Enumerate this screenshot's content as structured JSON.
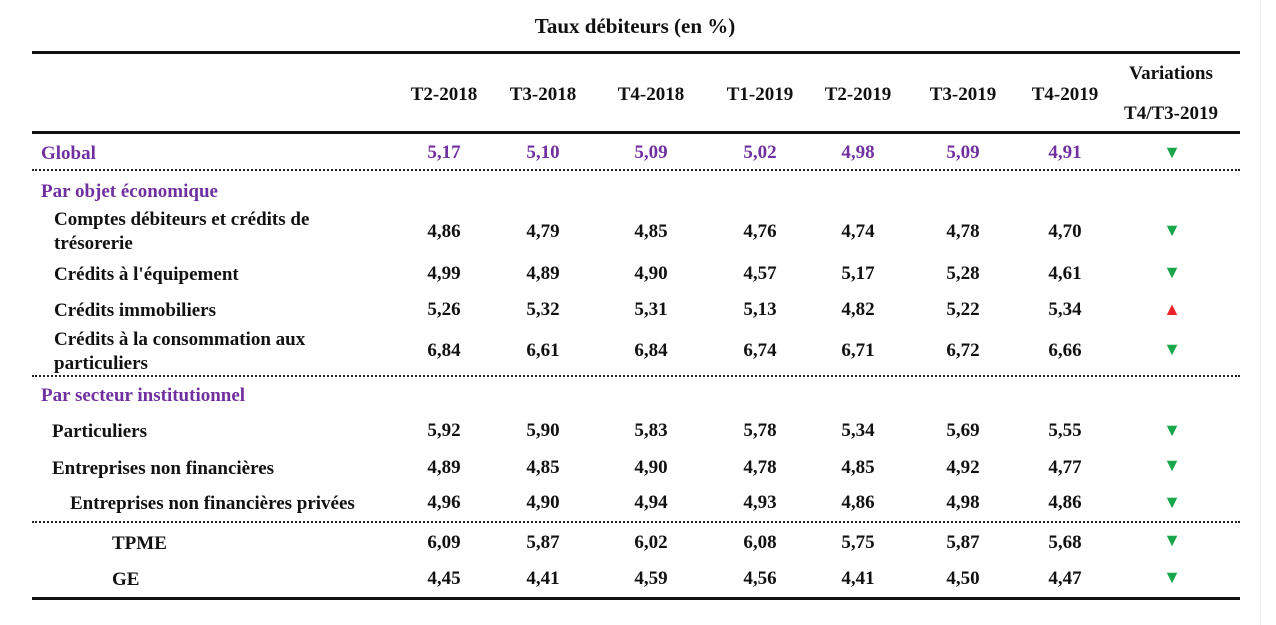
{
  "title": "Taux débiteurs (en %)",
  "columns": [
    "T2-2018",
    "T3-2018",
    "T4-2018",
    "T1-2019",
    "T2-2019",
    "T3-2019",
    "T4-2019"
  ],
  "variation_header": [
    "Variations",
    "T4/T3-2019"
  ],
  "sections": {
    "objet": "Par objet économique",
    "secteur": "Par secteur institutionnel"
  },
  "rows": [
    {
      "label": [
        "Global"
      ],
      "values": [
        "5,17",
        "5,10",
        "5,09",
        "5,02",
        "4,98",
        "5,09",
        "4,91"
      ],
      "variation": "down",
      "arrow": "▼"
    },
    {
      "label": [
        "Comptes débiteurs et crédits de",
        "trésorerie"
      ],
      "values": [
        "4,86",
        "4,79",
        "4,85",
        "4,76",
        "4,74",
        "4,78",
        "4,70"
      ],
      "variation": "down",
      "arrow": "▼"
    },
    {
      "label": [
        "Crédits à l'équipement"
      ],
      "values": [
        "4,99",
        "4,89",
        "4,90",
        "4,57",
        "5,17",
        "5,28",
        "4,61"
      ],
      "variation": "down",
      "arrow": "▼"
    },
    {
      "label": [
        "Crédits immobiliers"
      ],
      "values": [
        "5,26",
        "5,32",
        "5,31",
        "5,13",
        "4,82",
        "5,22",
        "5,34"
      ],
      "variation": "up",
      "arrow": "▲"
    },
    {
      "label": [
        "Crédits à la consommation aux",
        "particuliers"
      ],
      "values": [
        "6,84",
        "6,61",
        "6,84",
        "6,74",
        "6,71",
        "6,72",
        "6,66"
      ],
      "variation": "down",
      "arrow": "▼"
    },
    {
      "label": [
        "Particuliers"
      ],
      "values": [
        "5,92",
        "5,90",
        "5,83",
        "5,78",
        "5,34",
        "5,69",
        "5,55"
      ],
      "variation": "down",
      "arrow": "▼"
    },
    {
      "label": [
        "Entreprises non financières"
      ],
      "values": [
        "4,89",
        "4,85",
        "4,90",
        "4,78",
        "4,85",
        "4,92",
        "4,77"
      ],
      "variation": "down",
      "arrow": "▼"
    },
    {
      "label": [
        "Entreprises non financières privées"
      ],
      "values": [
        "4,96",
        "4,90",
        "4,94",
        "4,93",
        "4,86",
        "4,98",
        "4,86"
      ],
      "variation": "down",
      "arrow": "▼"
    },
    {
      "label": [
        "TPME"
      ],
      "values": [
        "6,09",
        "5,87",
        "6,02",
        "6,08",
        "5,75",
        "5,87",
        "5,68"
      ],
      "variation": "down",
      "arrow": "▼"
    },
    {
      "label": [
        "GE"
      ],
      "values": [
        "4,45",
        "4,41",
        "4,59",
        "4,56",
        "4,41",
        "4,50",
        "4,47"
      ],
      "variation": "down",
      "arrow": "▼"
    }
  ],
  "colors": {
    "accent": "#7030a0",
    "down": "#1aa64a",
    "up": "#e8232a"
  }
}
